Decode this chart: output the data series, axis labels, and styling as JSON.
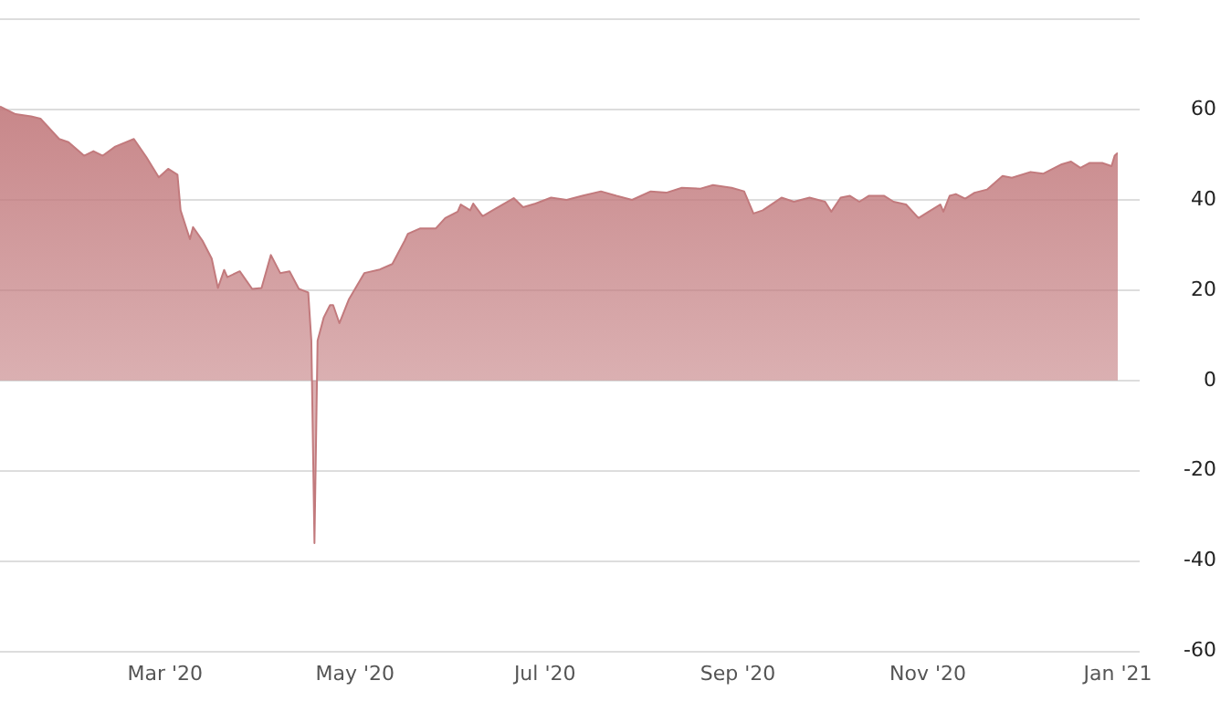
{
  "chart_data": {
    "type": "area",
    "x": [
      "2020-01-08",
      "2020-01-13",
      "2020-01-18",
      "2020-01-21",
      "2020-01-27",
      "2020-01-30",
      "2020-02-04",
      "2020-02-07",
      "2020-02-10",
      "2020-02-14",
      "2020-02-20",
      "2020-02-24",
      "2020-02-28",
      "2020-03-02",
      "2020-03-05",
      "2020-03-06",
      "2020-03-09",
      "2020-03-10",
      "2020-03-13",
      "2020-03-16",
      "2020-03-18",
      "2020-03-20",
      "2020-03-21",
      "2020-03-25",
      "2020-03-29",
      "2020-04-01",
      "2020-04-04",
      "2020-04-07",
      "2020-04-10",
      "2020-04-13",
      "2020-04-16",
      "2020-04-17",
      "2020-04-18",
      "2020-04-19",
      "2020-04-21",
      "2020-04-23",
      "2020-04-24",
      "2020-04-26",
      "2020-04-29",
      "2020-05-04",
      "2020-05-09",
      "2020-05-13",
      "2020-05-17",
      "2020-05-18",
      "2020-05-22",
      "2020-05-24",
      "2020-05-27",
      "2020-05-30",
      "2020-06-03",
      "2020-06-04",
      "2020-06-07",
      "2020-06-08",
      "2020-06-11",
      "2020-06-15",
      "2020-06-21",
      "2020-06-24",
      "2020-06-28",
      "2020-07-03",
      "2020-07-08",
      "2020-07-13",
      "2020-07-19",
      "2020-07-24",
      "2020-07-29",
      "2020-08-04",
      "2020-08-09",
      "2020-08-14",
      "2020-08-20",
      "2020-08-24",
      "2020-08-30",
      "2020-09-03",
      "2020-09-06",
      "2020-09-09",
      "2020-09-15",
      "2020-09-19",
      "2020-09-24",
      "2020-09-29",
      "2020-10-01",
      "2020-10-04",
      "2020-10-07",
      "2020-10-10",
      "2020-10-13",
      "2020-10-18",
      "2020-10-21",
      "2020-10-25",
      "2020-10-29",
      "2020-11-02",
      "2020-11-05",
      "2020-11-06",
      "2020-11-08",
      "2020-11-10",
      "2020-11-13",
      "2020-11-16",
      "2020-11-20",
      "2020-11-25",
      "2020-11-28",
      "2020-12-04",
      "2020-12-08",
      "2020-12-14",
      "2020-12-17",
      "2020-12-20",
      "2020-12-23",
      "2020-12-27",
      "2020-12-30",
      "2020-12-31",
      "2021-01-01"
    ],
    "series": [
      {
        "color": "#c27a7d",
        "values": [
          60.7,
          59,
          58.5,
          58,
          53.5,
          52.8,
          49.8,
          50.8,
          49.8,
          51.8,
          53.5,
          49.5,
          45,
          46.9,
          45.6,
          37.7,
          31.3,
          34,
          31,
          27,
          20.5,
          24.5,
          22.9,
          24.2,
          20.3,
          20.5,
          27.8,
          23.8,
          24.2,
          20.3,
          19.5,
          8.8,
          -36,
          8.8,
          14,
          16.7,
          16.7,
          12.7,
          17.9,
          23.8,
          24.6,
          25.8,
          31,
          32.5,
          33.7,
          33.7,
          33.7,
          36,
          37.4,
          39,
          37.7,
          39.2,
          36.4,
          38,
          40.4,
          38.4,
          39.2,
          40.5,
          40,
          40.9,
          41.9,
          40.9,
          40,
          41.9,
          41.6,
          42.7,
          42.5,
          43.3,
          42.7,
          41.9,
          37,
          37.7,
          40.5,
          39.6,
          40.5,
          39.6,
          37.4,
          40.5,
          40.9,
          39.6,
          40.9,
          40.9,
          39.6,
          39,
          36,
          37.7,
          39,
          37.4,
          40.9,
          41.3,
          40.3,
          41.6,
          42.3,
          45.3,
          44.9,
          46.2,
          45.8,
          47.9,
          48.5,
          47.1,
          48.2,
          48.2,
          47.5,
          49.8,
          50.4
        ]
      }
    ],
    "xlim": [
      "2020-01-08",
      "2021-01-01"
    ],
    "xticks": [
      {
        "value": "2020-03-01",
        "label": "Mar '20"
      },
      {
        "value": "2020-05-01",
        "label": "May '20"
      },
      {
        "value": "2020-07-01",
        "label": "Jul '20"
      },
      {
        "value": "2020-09-01",
        "label": "Sep '20"
      },
      {
        "value": "2020-11-01",
        "label": "Nov '20"
      },
      {
        "value": "2021-01-01",
        "label": "Jan '21"
      }
    ],
    "ylim": [
      -60,
      80
    ],
    "yticks": [
      -60,
      -40,
      -20,
      0,
      20,
      40,
      60,
      {
        "value": 80,
        "label": null
      }
    ],
    "grid": "y",
    "legend": false
  }
}
